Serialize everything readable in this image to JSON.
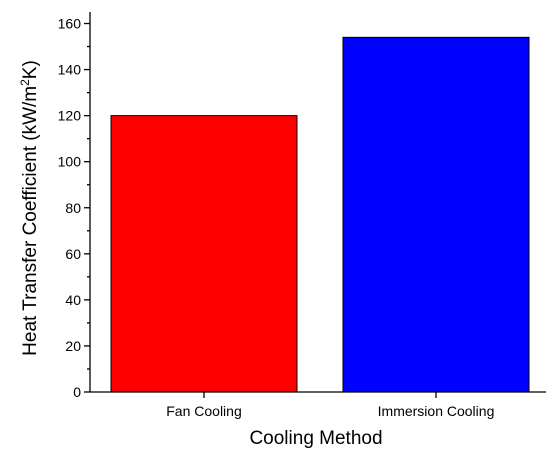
{
  "chart_data": {
    "type": "bar",
    "categories": [
      "Fan Cooling",
      "Immersion Cooling"
    ],
    "values": [
      120,
      154
    ],
    "colors": [
      "#FF0000",
      "#0000FF"
    ],
    "xlabel": "Cooling Method",
    "ylabel": {
      "main": "Heat Transfer Coefficient (kW/m",
      "sup": "2",
      "tail": "K)"
    },
    "ylim": [
      0,
      165
    ],
    "yticks": [
      0,
      20,
      40,
      60,
      80,
      100,
      120,
      140,
      160
    ],
    "minor_yticks": [
      10,
      30,
      50,
      70,
      90,
      110,
      130,
      150
    ],
    "grid": false,
    "legend": "none"
  }
}
